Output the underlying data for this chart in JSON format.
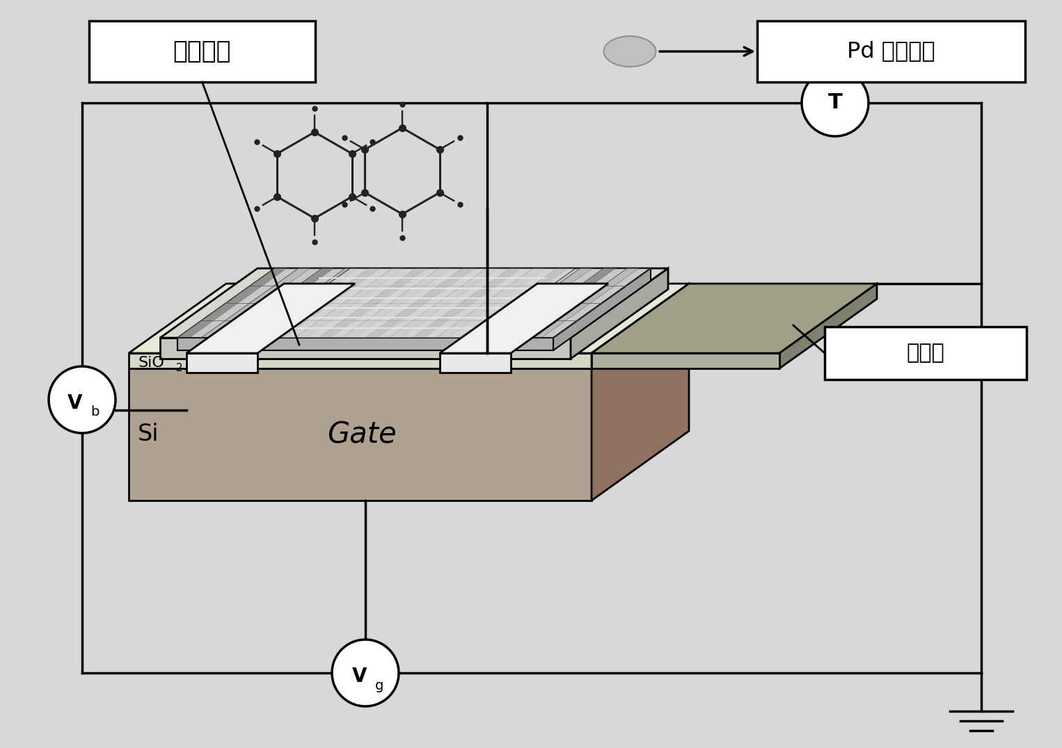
{
  "bg_color": "#d8d8d8",
  "label_cnt": "碳纳米管",
  "label_pd": "Pd 纳米颗粒",
  "label_graphene": "石墨烯",
  "label_sio": "SiO",
  "label_sio2": "2",
  "label_si": "Si",
  "label_gate": "Gate",
  "label_vb": "V",
  "label_vb_sub": "b",
  "label_vg": "V",
  "label_vg_sub": "g",
  "label_T": "T",
  "si_front": "#b0a090",
  "si_top": "#c0b0a0",
  "si_right": "#907060",
  "sio_front": "#d8d8c8",
  "sio_top": "#e8e8d8",
  "sio_right": "#c8c8b8",
  "graphene_top": "#a0a088",
  "graphene_right": "#808070",
  "device_base_front": "#c8c8c0",
  "device_base_top": "#d8d8d0",
  "device_base_right": "#a8a8a0",
  "cnt_array_a": "#b0b0b0",
  "cnt_array_b": "#909090",
  "electrode_front": "#e0e0e0",
  "electrode_top": "#f0f0f0",
  "wire_color": "#000000",
  "wire_lw": 2.5,
  "lc": "#000000"
}
